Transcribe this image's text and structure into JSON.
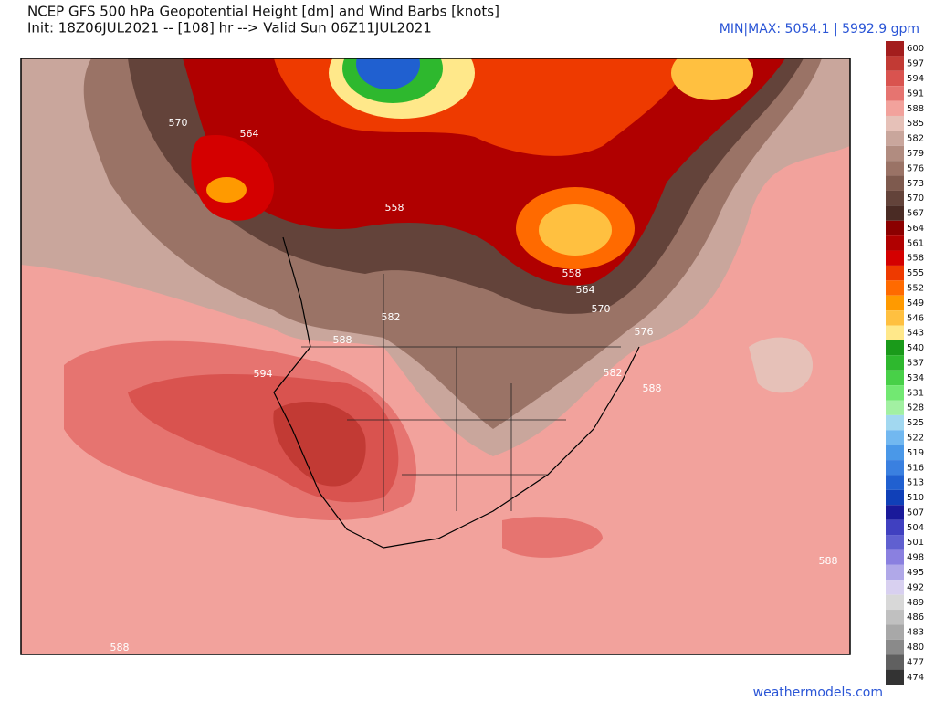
{
  "header": {
    "title": "NCEP GFS 500 hPa Geopotential Height [dm] and Wind Barbs [knots]",
    "subtitle": "Init: 18Z06JUL2021 -- [108] hr --> Valid Sun 06Z11JUL2021",
    "minmax": "MIN|MAX: 5054.1 | 5992.9 gpm"
  },
  "colorbar": {
    "levels": [
      600,
      597,
      594,
      591,
      588,
      585,
      582,
      579,
      576,
      573,
      570,
      567,
      564,
      561,
      558,
      555,
      552,
      549,
      546,
      543,
      540,
      537,
      534,
      531,
      528,
      525,
      522,
      519,
      516,
      513,
      510,
      507,
      504,
      501,
      498,
      495,
      492,
      489,
      486,
      483,
      480,
      477,
      474
    ],
    "colors": [
      "#a31d1d",
      "#c23a34",
      "#d9534f",
      "#e67470",
      "#f2a29c",
      "#e6c1b8",
      "#c9a69c",
      "#b18c80",
      "#9a7366",
      "#7e5a4e",
      "#63433a",
      "#4a2b24",
      "#8b0000",
      "#b00000",
      "#d40000",
      "#ee3a00",
      "#ff6a00",
      "#ff9a00",
      "#ffc040",
      "#ffe88a",
      "#1a9a1a",
      "#2eb82e",
      "#48d048",
      "#72e872",
      "#a2f0a2",
      "#a2d8f0",
      "#72b8f0",
      "#4a98e8",
      "#3a80e0",
      "#2060d0",
      "#1040b8",
      "#1a1a9a",
      "#4040c0",
      "#6060d0",
      "#8a80e0",
      "#b0a8e8",
      "#d8d0f0",
      "#d8d8d8",
      "#c0c0c0",
      "#a8a8a8",
      "#8a8a8a",
      "#606060",
      "#333333"
    ]
  },
  "contour_labels": [
    570,
    564,
    558,
    582,
    588,
    594,
    558,
    564,
    570,
    576,
    582,
    588,
    588,
    588
  ],
  "footer": "weathermodels.com"
}
